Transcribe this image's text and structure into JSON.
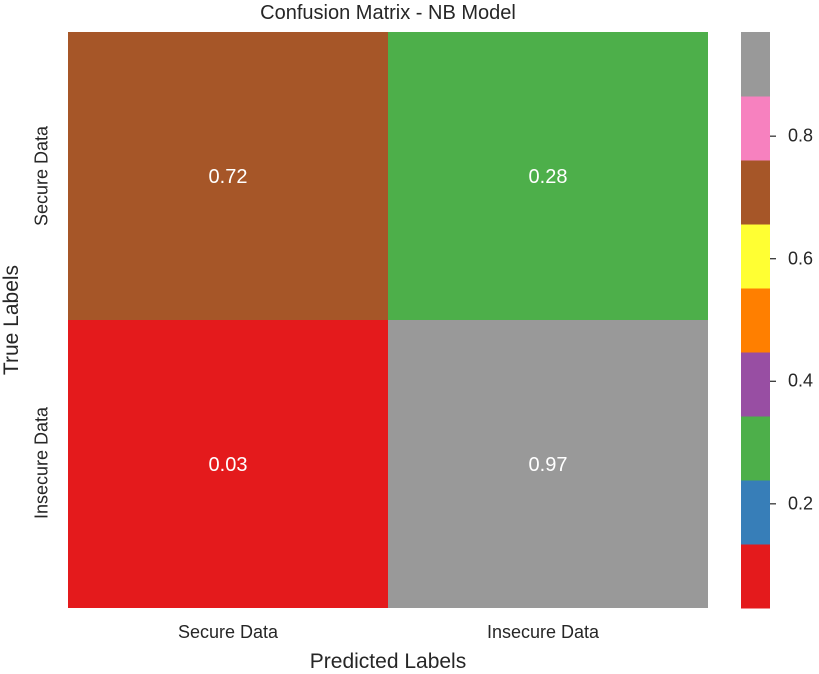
{
  "chart_data": {
    "type": "heatmap",
    "title": "Confusion Matrix - NB Model",
    "xlabel": "Predicted Labels",
    "ylabel": "True Labels",
    "x_categories": [
      "Secure Data",
      "Insecure Data"
    ],
    "y_categories": [
      "Secure Data",
      "Insecure Data"
    ],
    "values": [
      [
        0.72,
        0.28
      ],
      [
        0.03,
        0.97
      ]
    ],
    "annotations": [
      [
        "0.72",
        "0.28"
      ],
      [
        "0.03",
        "0.97"
      ]
    ],
    "colorbar": {
      "range": [
        0.03,
        0.97
      ],
      "ticks": [
        0.2,
        0.4,
        0.6,
        0.8
      ],
      "tick_labels": [
        "0.2",
        "0.4",
        "0.6",
        "0.8"
      ],
      "palette": [
        "#e41a1c",
        "#377eb8",
        "#4daf4a",
        "#984ea3",
        "#ff7f00",
        "#ffff33",
        "#a65628",
        "#f781bf",
        "#999999"
      ]
    },
    "cell_text_color": "#ffffff"
  }
}
